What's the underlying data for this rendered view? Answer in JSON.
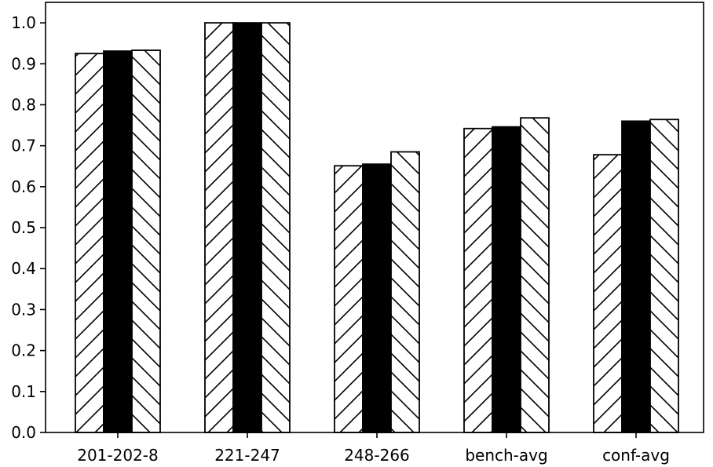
{
  "chart_data": {
    "type": "bar",
    "title": "",
    "xlabel": "",
    "ylabel": "",
    "categories": [
      "201-202-8",
      "221-247",
      "248-266",
      "bench-avg",
      "conf-avg"
    ],
    "series": [
      {
        "pattern": "forward-diagonal-hatch",
        "values": [
          0.925,
          1.0,
          0.651,
          0.742,
          0.678
        ]
      },
      {
        "pattern": "solid-black",
        "values": [
          0.931,
          1.0,
          0.655,
          0.746,
          0.76
        ]
      },
      {
        "pattern": "backward-diagonal-hatch",
        "values": [
          0.933,
          1.0,
          0.685,
          0.768,
          0.764
        ]
      }
    ],
    "ylim": [
      0,
      1.05
    ],
    "yticks": [
      0.0,
      0.1,
      0.2,
      0.3,
      0.4,
      0.5,
      0.6,
      0.7,
      0.8,
      0.9,
      1.0
    ],
    "ytick_labels": [
      "0.0",
      "0.1",
      "0.2",
      "0.3",
      "0.4",
      "0.5",
      "0.6",
      "0.7",
      "0.8",
      "0.9",
      "1.0"
    ],
    "grid": false,
    "legend": "none",
    "colors": {
      "bar_edge": "#000000",
      "bar_fill": "#ffffff",
      "solid_fill": "#000000",
      "hatch": "#000000"
    }
  }
}
